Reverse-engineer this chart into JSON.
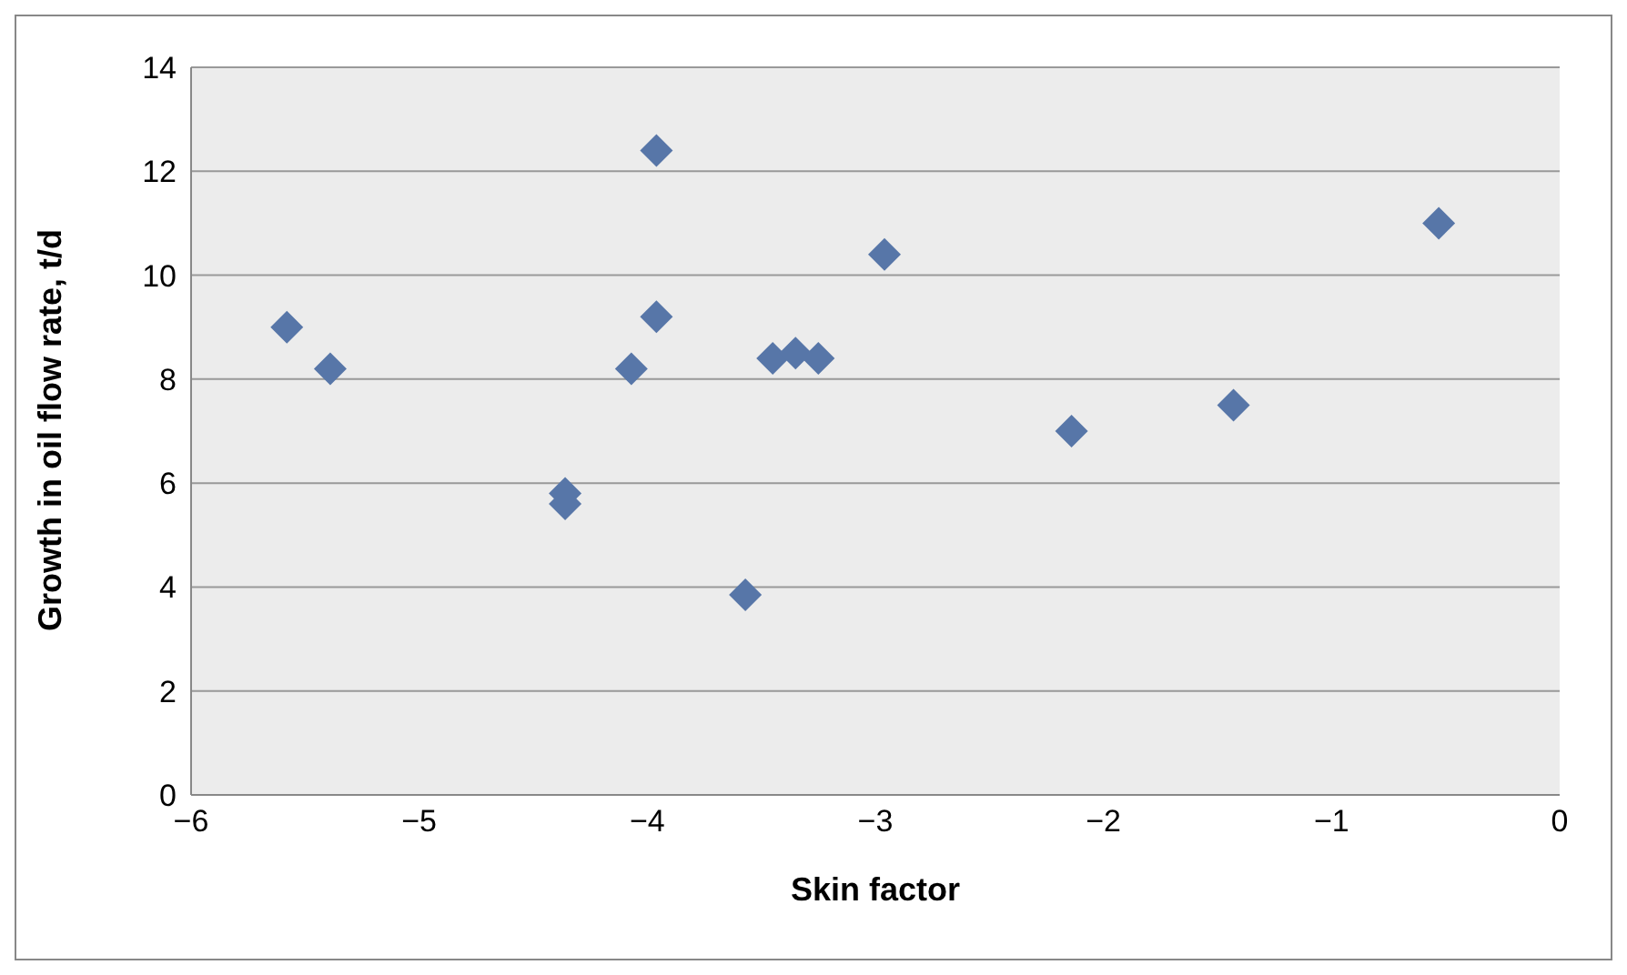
{
  "chart_data": {
    "type": "scatter",
    "xlabel": "Skin factor",
    "ylabel": "Growth in oil flow rate, t/d",
    "x": [
      -5.58,
      -5.39,
      -4.36,
      -4.36,
      -4.07,
      -3.96,
      -3.96,
      -3.57,
      -3.45,
      -3.35,
      -3.25,
      -2.96,
      -2.14,
      -1.43,
      -0.53
    ],
    "series": [
      {
        "color": "#5776a8",
        "values": [
          9.0,
          8.2,
          5.8,
          5.6,
          8.2,
          12.4,
          9.2,
          3.85,
          8.4,
          8.5,
          8.4,
          10.4,
          7.0,
          7.5,
          11.0
        ]
      }
    ],
    "xlim": [
      -6,
      0
    ],
    "xticks": [
      {
        "value": -6,
        "label": "−6"
      },
      {
        "value": -5,
        "label": "−5"
      },
      {
        "value": -4,
        "label": "−4"
      },
      {
        "value": -3,
        "label": "−3"
      },
      {
        "value": -2,
        "label": "−2"
      },
      {
        "value": -1,
        "label": "−1"
      },
      {
        "value": 0,
        "label": "0"
      }
    ],
    "ylim": [
      0,
      14
    ],
    "yticks": [
      0,
      2,
      4,
      6,
      8,
      10,
      12,
      14
    ],
    "grid": "y",
    "marker": "diamond"
  }
}
